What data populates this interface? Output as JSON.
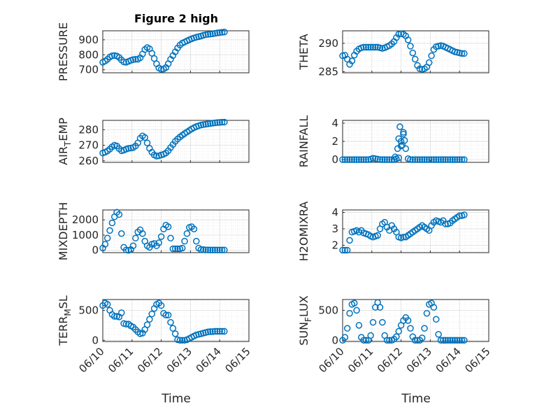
{
  "figure": {
    "title": "Figure 2 high",
    "xlabel": "Time",
    "x_tick_labels": [
      "06/10",
      "06/11",
      "06/12",
      "06/13",
      "06/14",
      "06/15"
    ],
    "marker_color": "#0072BD"
  },
  "chart_data": [
    {
      "type": "scatter",
      "ylabel": "PRESSURE",
      "ylabel_parts": [
        "PRESSURE"
      ],
      "yticks": [
        700,
        800,
        900
      ],
      "ylim": [
        680,
        960
      ],
      "xlim": [
        0,
        5
      ],
      "x": [
        0.0,
        0.08,
        0.16,
        0.24,
        0.32,
        0.4,
        0.48,
        0.56,
        0.64,
        0.72,
        0.8,
        0.88,
        0.96,
        1.04,
        1.12,
        1.2,
        1.28,
        1.36,
        1.44,
        1.52,
        1.6,
        1.68,
        1.76,
        1.84,
        1.92,
        2.0,
        2.08,
        2.16,
        2.24,
        2.32,
        2.4,
        2.48,
        2.56,
        2.64,
        2.72,
        2.8,
        2.88,
        2.96,
        3.04,
        3.12,
        3.2,
        3.28,
        3.36,
        3.44,
        3.52,
        3.6,
        3.68,
        3.76,
        3.84,
        3.92,
        4.0,
        4.08,
        4.16
      ],
      "y": [
        750,
        758,
        770,
        785,
        793,
        795,
        792,
        782,
        765,
        752,
        750,
        756,
        763,
        768,
        770,
        770,
        780,
        805,
        835,
        848,
        840,
        810,
        775,
        740,
        712,
        703,
        705,
        715,
        740,
        770,
        795,
        820,
        845,
        865,
        878,
        885,
        893,
        900,
        907,
        912,
        917,
        921,
        925,
        930,
        934,
        936,
        938,
        940,
        943,
        946,
        948,
        950,
        952
      ]
    },
    {
      "type": "scatter",
      "ylabel": "THETA",
      "ylabel_parts": [
        "THETA"
      ],
      "yticks": [
        285,
        290
      ],
      "ylim": [
        284.8,
        292.2
      ],
      "xlim": [
        0,
        5
      ],
      "x": [
        0.0,
        0.08,
        0.16,
        0.24,
        0.32,
        0.4,
        0.48,
        0.56,
        0.64,
        0.72,
        0.8,
        0.88,
        0.96,
        1.04,
        1.12,
        1.2,
        1.28,
        1.36,
        1.44,
        1.52,
        1.6,
        1.68,
        1.76,
        1.84,
        1.92,
        2.0,
        2.08,
        2.16,
        2.24,
        2.32,
        2.4,
        2.48,
        2.56,
        2.64,
        2.72,
        2.8,
        2.88,
        2.96,
        3.04,
        3.12,
        3.2,
        3.28,
        3.36,
        3.44,
        3.52,
        3.6,
        3.68,
        3.76,
        3.84,
        3.92,
        4.0,
        4.08,
        4.16
      ],
      "y": [
        287.8,
        287.9,
        287.2,
        286.3,
        286.9,
        287.9,
        288.6,
        289.0,
        289.2,
        289.3,
        289.3,
        289.3,
        289.3,
        289.3,
        289.3,
        289.3,
        289.2,
        289.1,
        289.2,
        289.4,
        289.6,
        289.9,
        290.3,
        291.0,
        291.6,
        291.7,
        291.6,
        291.3,
        290.6,
        289.5,
        288.3,
        287.2,
        286.1,
        285.5,
        285.4,
        285.5,
        285.8,
        286.6,
        287.8,
        288.9,
        289.4,
        289.5,
        289.6,
        289.5,
        289.3,
        289.1,
        288.9,
        288.7,
        288.5,
        288.4,
        288.3,
        288.2,
        288.2
      ]
    },
    {
      "type": "scatter",
      "ylabel": "AIR_TEMP",
      "ylabel_parts": [
        "AIR",
        "T",
        "EMP"
      ],
      "yticks": [
        260,
        270,
        280
      ],
      "ylim": [
        259,
        286
      ],
      "xlim": [
        0,
        5
      ],
      "x": [
        0.0,
        0.08,
        0.16,
        0.24,
        0.32,
        0.4,
        0.48,
        0.56,
        0.64,
        0.72,
        0.8,
        0.88,
        0.96,
        1.04,
        1.12,
        1.2,
        1.28,
        1.36,
        1.44,
        1.52,
        1.6,
        1.68,
        1.76,
        1.84,
        1.92,
        2.0,
        2.08,
        2.16,
        2.24,
        2.32,
        2.4,
        2.48,
        2.56,
        2.64,
        2.72,
        2.8,
        2.88,
        2.96,
        3.04,
        3.12,
        3.2,
        3.28,
        3.36,
        3.44,
        3.52,
        3.6,
        3.68,
        3.76,
        3.84,
        3.92,
        4.0,
        4.08,
        4.16
      ],
      "y": [
        265.0,
        265.5,
        266.3,
        267.5,
        269.0,
        270.0,
        269.5,
        267.8,
        266.5,
        266.8,
        267.5,
        268.0,
        268.2,
        268.5,
        269.5,
        271.5,
        274.5,
        276.0,
        275.0,
        271.5,
        268.0,
        265.5,
        263.8,
        263.0,
        263.2,
        263.8,
        264.2,
        265.0,
        266.5,
        268.5,
        270.5,
        272.5,
        274.0,
        275.3,
        276.5,
        277.5,
        278.5,
        279.5,
        280.5,
        281.3,
        282.0,
        282.5,
        283.0,
        283.3,
        283.5,
        283.8,
        284.0,
        284.2,
        284.4,
        284.6,
        284.7,
        284.8,
        284.9
      ]
    },
    {
      "type": "scatter",
      "ylabel": "RAINFALL",
      "ylabel_parts": [
        "RAINFALL"
      ],
      "yticks": [
        0,
        2,
        4
      ],
      "ylim": [
        -0.3,
        4.3
      ],
      "xlim": [
        0,
        5
      ],
      "x": [
        0.0,
        0.08,
        0.16,
        0.24,
        0.32,
        0.4,
        0.48,
        0.56,
        0.64,
        0.72,
        0.8,
        0.88,
        0.96,
        1.04,
        1.12,
        1.2,
        1.28,
        1.36,
        1.44,
        1.52,
        1.6,
        1.68,
        1.76,
        1.84,
        1.92,
        2.0,
        2.08,
        2.16,
        2.24,
        2.32,
        2.4,
        2.48,
        2.56,
        2.64,
        2.72,
        2.8,
        2.88,
        2.96,
        3.04,
        3.12,
        3.2,
        3.28,
        3.36,
        3.44,
        3.52,
        3.6,
        3.68,
        3.76,
        3.84,
        3.92,
        4.0,
        4.08,
        4.16,
        1.88,
        1.92,
        1.96,
        2.0,
        2.04,
        2.08,
        2.12,
        1.8
      ],
      "y": [
        0,
        0,
        0,
        0,
        0,
        0,
        0,
        0,
        0,
        0,
        0,
        0,
        0.05,
        0.15,
        0.1,
        0.05,
        0,
        0,
        0,
        0,
        0,
        0,
        0,
        0.1,
        0.2,
        1.5,
        3.0,
        1.2,
        0.1,
        0,
        0,
        0,
        0,
        0,
        0,
        0,
        0,
        0,
        0,
        0,
        0,
        0,
        0,
        0,
        0,
        0,
        0,
        0,
        0,
        0,
        0,
        0,
        0,
        1.2,
        2.3,
        3.6,
        2.0,
        1.6,
        2.8,
        2.1,
        0.3
      ]
    },
    {
      "type": "scatter",
      "ylabel": "MIXDEPTH",
      "ylabel_parts": [
        "MIXDEPTH"
      ],
      "yticks": [
        0,
        1000,
        2000
      ],
      "ylim": [
        -150,
        2650
      ],
      "xlim": [
        0,
        5
      ],
      "x": [
        0.0,
        0.08,
        0.16,
        0.24,
        0.32,
        0.4,
        0.48,
        0.56,
        0.64,
        0.72,
        0.8,
        0.88,
        0.96,
        1.04,
        1.12,
        1.2,
        1.28,
        1.36,
        1.44,
        1.52,
        1.6,
        1.68,
        1.76,
        1.84,
        1.92,
        2.0,
        2.08,
        2.16,
        2.24,
        2.32,
        2.4,
        2.48,
        2.56,
        2.64,
        2.72,
        2.8,
        2.88,
        2.96,
        3.04,
        3.12,
        3.2,
        3.28,
        3.36,
        3.44,
        3.52,
        3.6,
        3.68,
        3.76,
        3.84,
        3.92,
        4.0,
        4.08,
        4.16
      ],
      "y": [
        150,
        400,
        800,
        1300,
        1800,
        2200,
        2500,
        2350,
        1100,
        200,
        20,
        0,
        50,
        300,
        800,
        1200,
        1350,
        1100,
        600,
        300,
        200,
        400,
        450,
        300,
        500,
        900,
        1400,
        1650,
        1550,
        800,
        100,
        100,
        100,
        100,
        150,
        600,
        1100,
        1500,
        1550,
        1400,
        600,
        150,
        50,
        50,
        30,
        30,
        20,
        20,
        20,
        20,
        20,
        20,
        20
      ]
    },
    {
      "type": "scatter",
      "ylabel": "H2OMIXRA",
      "ylabel_parts": [
        "H2OMIXRA"
      ],
      "yticks": [
        2,
        3,
        4
      ],
      "ylim": [
        1.55,
        4.15
      ],
      "xlim": [
        0,
        5
      ],
      "x": [
        0.0,
        0.08,
        0.16,
        0.24,
        0.32,
        0.4,
        0.48,
        0.56,
        0.64,
        0.72,
        0.8,
        0.88,
        0.96,
        1.04,
        1.12,
        1.2,
        1.28,
        1.36,
        1.44,
        1.52,
        1.6,
        1.68,
        1.76,
        1.84,
        1.92,
        2.0,
        2.08,
        2.16,
        2.24,
        2.32,
        2.4,
        2.48,
        2.56,
        2.64,
        2.72,
        2.8,
        2.88,
        2.96,
        3.04,
        3.12,
        3.2,
        3.28,
        3.36,
        3.44,
        3.52,
        3.6,
        3.68,
        3.76,
        3.84,
        3.92,
        4.0,
        4.08,
        4.16
      ],
      "y": [
        1.7,
        1.7,
        1.7,
        2.3,
        2.8,
        2.85,
        2.9,
        2.8,
        2.9,
        2.75,
        2.7,
        2.65,
        2.55,
        2.5,
        2.55,
        2.6,
        3.0,
        3.3,
        3.4,
        3.1,
        2.9,
        3.2,
        3.0,
        2.8,
        2.5,
        2.45,
        2.5,
        2.5,
        2.6,
        2.7,
        2.8,
        2.9,
        3.0,
        3.1,
        3.2,
        3.1,
        3.0,
        2.9,
        3.2,
        3.4,
        3.5,
        3.45,
        3.4,
        3.5,
        3.3,
        3.3,
        3.35,
        3.5,
        3.6,
        3.7,
        3.8,
        3.8,
        3.85
      ]
    },
    {
      "type": "scatter",
      "ylabel": "TERR_MSL",
      "ylabel_parts": [
        "TERR",
        "M",
        "SL"
      ],
      "yticks": [
        0,
        500
      ],
      "ylim": [
        -20,
        680
      ],
      "xlim": [
        0,
        5
      ],
      "x": [
        0.0,
        0.08,
        0.16,
        0.24,
        0.32,
        0.4,
        0.48,
        0.56,
        0.64,
        0.72,
        0.8,
        0.88,
        0.96,
        1.04,
        1.12,
        1.2,
        1.28,
        1.36,
        1.44,
        1.52,
        1.6,
        1.68,
        1.76,
        1.84,
        1.92,
        2.0,
        2.08,
        2.16,
        2.24,
        2.32,
        2.4,
        2.48,
        2.56,
        2.64,
        2.72,
        2.8,
        2.88,
        2.96,
        3.04,
        3.12,
        3.2,
        3.28,
        3.36,
        3.44,
        3.52,
        3.6,
        3.68,
        3.76,
        3.84,
        3.92,
        4.0,
        4.08,
        4.16
      ],
      "y": [
        580,
        620,
        600,
        500,
        430,
        400,
        400,
        390,
        460,
        280,
        270,
        270,
        240,
        220,
        180,
        140,
        110,
        120,
        180,
        260,
        350,
        440,
        530,
        600,
        620,
        580,
        450,
        420,
        420,
        300,
        200,
        110,
        10,
        0,
        0,
        0,
        10,
        30,
        50,
        70,
        90,
        100,
        110,
        120,
        130,
        140,
        145,
        145,
        150,
        150,
        150,
        150,
        150
      ]
    },
    {
      "type": "scatter",
      "ylabel": "SUN_FLUX",
      "ylabel_parts": [
        "SUN",
        "F",
        "LUX"
      ],
      "yticks": [
        0,
        500
      ],
      "ylim": [
        -20,
        680
      ],
      "xlim": [
        0,
        5
      ],
      "x": [
        0.0,
        0.08,
        0.16,
        0.24,
        0.32,
        0.4,
        0.48,
        0.56,
        0.64,
        0.72,
        0.8,
        0.88,
        0.96,
        1.04,
        1.12,
        1.2,
        1.28,
        1.36,
        1.44,
        1.52,
        1.6,
        1.68,
        1.76,
        1.84,
        1.92,
        2.0,
        2.08,
        2.16,
        2.24,
        2.32,
        2.4,
        2.48,
        2.56,
        2.64,
        2.72,
        2.8,
        2.88,
        2.96,
        3.04,
        3.12,
        3.2,
        3.28,
        3.36,
        3.44,
        3.52,
        3.6,
        3.68,
        3.76,
        3.84,
        3.92,
        4.0,
        4.08,
        4.16
      ],
      "y": [
        0,
        50,
        200,
        450,
        600,
        620,
        500,
        250,
        50,
        0,
        0,
        0,
        80,
        300,
        550,
        630,
        550,
        300,
        80,
        0,
        0,
        0,
        20,
        60,
        150,
        250,
        330,
        380,
        330,
        200,
        60,
        0,
        0,
        0,
        40,
        200,
        450,
        600,
        620,
        550,
        350,
        100,
        0,
        0,
        0,
        0,
        0,
        0,
        0,
        0,
        0,
        0,
        0
      ]
    }
  ]
}
